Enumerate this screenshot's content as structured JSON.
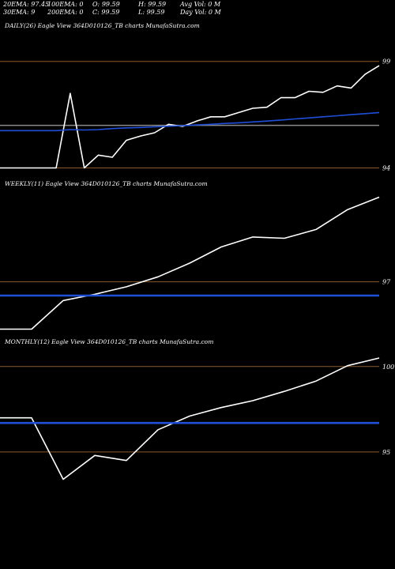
{
  "stats": {
    "row1": [
      {
        "label": "20EMA:",
        "value": "97.45"
      },
      {
        "label": "100EMA:",
        "value": "0"
      },
      {
        "label": "O:",
        "value": "99.59"
      },
      {
        "label": "H:",
        "value": "99.59"
      },
      {
        "label": "Avg Vol:",
        "value": "0  M"
      }
    ],
    "row2": [
      {
        "label": "30EMA:",
        "value": "9"
      },
      {
        "label": "200EMA:",
        "value": "0"
      },
      {
        "label": "C:",
        "value": "99.59"
      },
      {
        "label": "L:",
        "value": "99.59"
      },
      {
        "label": "Day Vol:",
        "value": "0  M"
      }
    ]
  },
  "colors": {
    "background": "#000000",
    "price_line": "#ffffff",
    "ema_line": "#1f4fd8",
    "level_line": "#8b5a2b",
    "gray_line": "#8a8a8a"
  },
  "chart_data": [
    {
      "type": "line",
      "title": "DAILY(26) Eagle  View  364D010126_TB charts MunafaSutra.com",
      "ylim": [
        93.5,
        100.4
      ],
      "yticks": [
        {
          "label": "99",
          "value": 99
        },
        {
          "label": "94",
          "value": 94
        }
      ],
      "reference_levels": [
        {
          "value": 96.0,
          "kind": "gray"
        }
      ],
      "grid": false,
      "series": [
        {
          "role": "price",
          "values": [
            94,
            94,
            94,
            94,
            94,
            97.5,
            94,
            94.6,
            94.5,
            95.3,
            95.5,
            95.65,
            96.05,
            95.95,
            96.2,
            96.4,
            96.4,
            96.6,
            96.8,
            96.85,
            97.3,
            97.3,
            97.6,
            97.55,
            97.85,
            97.75,
            98.4,
            98.8
          ]
        },
        {
          "role": "ema",
          "values": [
            95.75,
            95.75,
            95.75,
            95.75,
            95.75,
            95.8,
            95.78,
            95.8,
            95.85,
            95.88,
            95.9,
            95.93,
            95.96,
            95.98,
            96.02,
            96.05,
            96.09,
            96.12,
            96.16,
            96.2,
            96.25,
            96.3,
            96.35,
            96.4,
            96.45,
            96.5,
            96.55,
            96.6
          ]
        }
      ]
    },
    {
      "type": "line",
      "title": "WEEKLY(11) Eagle  View  364D010126_TB charts MunafaSutra.com",
      "ylim": [
        94.8,
        100.7
      ],
      "yticks": [
        {
          "label": "97",
          "value": 97
        }
      ],
      "grid": false,
      "series": [
        {
          "role": "price",
          "values": [
            95.1,
            95.1,
            96.25,
            96.5,
            96.8,
            97.2,
            97.75,
            98.4,
            98.8,
            98.75,
            99.1,
            99.9,
            100.4
          ]
        },
        {
          "role": "ema",
          "values": [
            96.45,
            96.45,
            96.45,
            96.45,
            96.45,
            96.45,
            96.45,
            96.45,
            96.45,
            96.45,
            96.45,
            96.45,
            96.45
          ]
        }
      ]
    },
    {
      "type": "line",
      "title": "MONTHLY(12) Eagle  View  364D010126_TB charts MunafaSutra.com",
      "ylim": [
        92.5,
        101.1
      ],
      "yticks": [
        {
          "label": "100",
          "value": 100
        },
        {
          "label": "95",
          "value": 95
        }
      ],
      "grid": false,
      "series": [
        {
          "role": "price",
          "values": [
            97,
            97,
            93.4,
            94.8,
            94.5,
            96.3,
            97.1,
            97.6,
            98,
            98.55,
            99.15,
            100.05,
            100.5
          ]
        },
        {
          "role": "ema",
          "values": [
            96.7,
            96.7,
            96.7,
            96.7,
            96.7,
            96.7,
            96.7,
            96.7,
            96.7,
            96.7,
            96.7,
            96.7,
            96.7
          ]
        }
      ]
    }
  ]
}
